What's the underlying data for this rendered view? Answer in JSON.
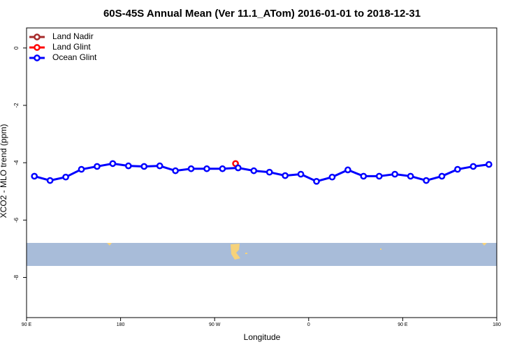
{
  "chart_data": {
    "type": "line",
    "title": "60S-45S Annual Mean (Ver 11.1_ATom)   2016-01-01 to 2018-12-31",
    "xlabel": "Longitude",
    "ylabel": "XCO2 - MLO trend (ppm)",
    "xlim": [
      90,
      540
    ],
    "xticks": [
      {
        "value": 90,
        "label": "90 E"
      },
      {
        "value": 180,
        "label": "180"
      },
      {
        "value": 270,
        "label": "90 W"
      },
      {
        "value": 360,
        "label": "0"
      },
      {
        "value": 450,
        "label": "90 E"
      },
      {
        "value": 540,
        "label": "180"
      }
    ],
    "ylim": [
      -9.4,
      0.7
    ],
    "yticks": [
      0,
      -2,
      -4,
      -6,
      -8
    ],
    "legend": "top-left",
    "series": [
      {
        "name": "Land Nadir",
        "color": "#a52a2a",
        "x": [],
        "values": []
      },
      {
        "name": "Land Glint",
        "color": "#ff0000",
        "x": [
          290
        ],
        "values": [
          -4.03
        ]
      },
      {
        "name": "Ocean Glint",
        "color": "#0000ff",
        "x": [
          97.5,
          112.5,
          127.5,
          142.5,
          157.5,
          172.5,
          187.5,
          202.5,
          217.5,
          232.5,
          247.5,
          262.5,
          277.5,
          292.5,
          307.5,
          322.5,
          337.5,
          352.5,
          367.5,
          382.5,
          397.5,
          412.5,
          427.5,
          442.5,
          457.5,
          472.5,
          487.5,
          502.5,
          517.5,
          532.5
        ],
        "values": [
          -4.47,
          -4.62,
          -4.5,
          -4.23,
          -4.13,
          -4.03,
          -4.11,
          -4.13,
          -4.11,
          -4.28,
          -4.21,
          -4.21,
          -4.21,
          -4.18,
          -4.28,
          -4.33,
          -4.45,
          -4.4,
          -4.65,
          -4.5,
          -4.25,
          -4.47,
          -4.47,
          -4.4,
          -4.47,
          -4.62,
          -4.47,
          -4.23,
          -4.13,
          -4.06
        ]
      }
    ]
  }
}
